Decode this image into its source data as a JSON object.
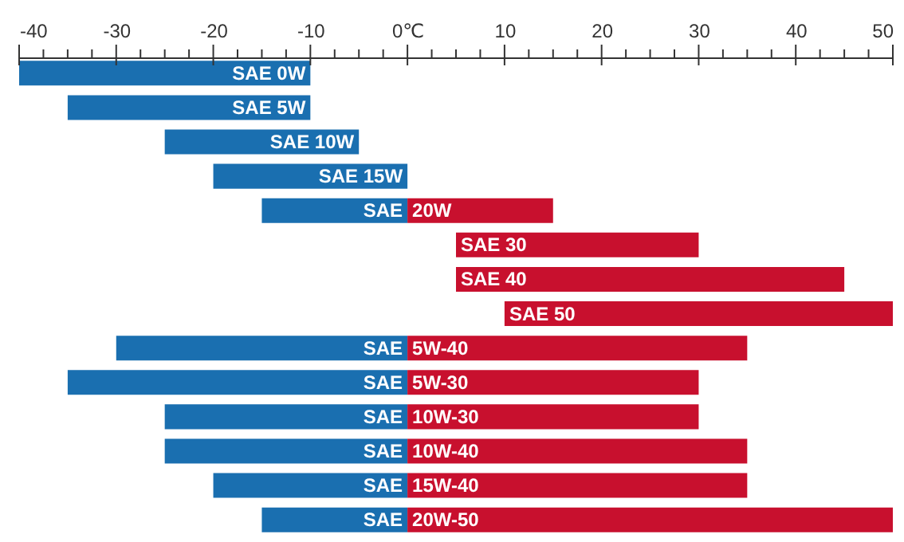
{
  "chart_data": {
    "type": "bar",
    "orientation": "horizontal",
    "categories": [
      "SAE 0W",
      "SAE 5W",
      "SAE 10W",
      "SAE 15W",
      "SAE 20W",
      "SAE 30",
      "SAE 40",
      "SAE 50",
      "SAE 5W-40",
      "SAE 5W-30",
      "SAE 10W-30",
      "SAE 10W-40",
      "SAE 15W-40",
      "SAE 20W-50"
    ],
    "series": [
      {
        "color": "#1a6fb0",
        "base": [
          -40,
          -35,
          -25,
          -20,
          -15,
          null,
          null,
          null,
          -30,
          -35,
          -25,
          -25,
          -20,
          -15
        ],
        "values": [
          30,
          25,
          20,
          20,
          15,
          null,
          null,
          null,
          30,
          35,
          25,
          25,
          20,
          15
        ]
      },
      {
        "color": "#c8102e",
        "base": [
          null,
          null,
          null,
          null,
          0,
          5,
          5,
          10,
          0,
          0,
          0,
          0,
          0,
          0
        ],
        "values": [
          null,
          null,
          null,
          null,
          15,
          25,
          40,
          40,
          35,
          30,
          30,
          35,
          35,
          50
        ]
      }
    ],
    "xlim": [
      -40,
      50
    ],
    "xticks": [
      -40,
      {
        "value": -37.5,
        "label": null
      },
      {
        "value": -35,
        "label": null
      },
      {
        "value": -32.5,
        "label": null
      },
      -30,
      {
        "value": -27.5,
        "label": null
      },
      {
        "value": -25,
        "label": null
      },
      {
        "value": -22.5,
        "label": null
      },
      -20,
      {
        "value": -17.5,
        "label": null
      },
      {
        "value": -15,
        "label": null
      },
      {
        "value": -12.5,
        "label": null
      },
      -10,
      {
        "value": -7.5,
        "label": null
      },
      {
        "value": -5,
        "label": null
      },
      {
        "value": -2.5,
        "label": null
      },
      {
        "value": 0,
        "label": "0℃"
      },
      {
        "value": 2.5,
        "label": null
      },
      {
        "value": 5,
        "label": null
      },
      {
        "value": 7.5,
        "label": null
      },
      10,
      {
        "value": 12.5,
        "label": null
      },
      {
        "value": 15,
        "label": null
      },
      {
        "value": 17.5,
        "label": null
      },
      20,
      {
        "value": 22.5,
        "label": null
      },
      {
        "value": 25,
        "label": null
      },
      {
        "value": 27.5,
        "label": null
      },
      30,
      {
        "value": 32.5,
        "label": null
      },
      {
        "value": 35,
        "label": null
      },
      {
        "value": 37.5,
        "label": null
      },
      40,
      {
        "value": 42.5,
        "label": null
      },
      {
        "value": 45,
        "label": null
      },
      {
        "value": 47.5,
        "label": null
      },
      50
    ]
  }
}
